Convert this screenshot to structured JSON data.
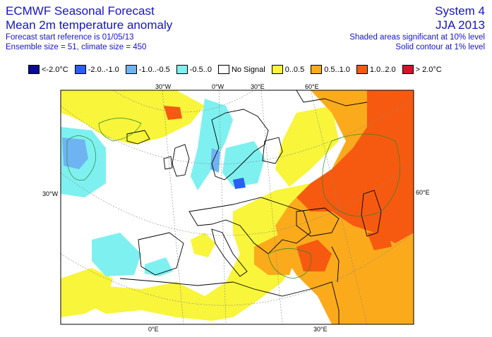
{
  "title": {
    "line1": "ECMWF Seasonal Forecast",
    "line2": "Mean 2m temperature anomaly",
    "line3": "Forecast start reference is 01/05/13",
    "line4": "Ensemble size = 51, climate size = 450"
  },
  "info": {
    "system": "System 4",
    "season": "JJA 2013",
    "shaded_note": "Shaded areas significant at 10% level",
    "contour_note": "Solid contour at 1% level"
  },
  "legend": [
    {
      "label": "<-2.0°C",
      "color": "#0a0a96"
    },
    {
      "label": "-2.0..-1.0",
      "color": "#2a5ff5"
    },
    {
      "label": "-1.0..-0.5",
      "color": "#6fb4f2"
    },
    {
      "label": "-0.5..0",
      "color": "#7ff0f0"
    },
    {
      "label": "No Signal",
      "color": "#ffffff"
    },
    {
      "label": "0..0.5",
      "color": "#f8f53a"
    },
    {
      "label": "0.5..1.0",
      "color": "#fbaa1c"
    },
    {
      "label": "1.0..2.0",
      "color": "#f65a10"
    },
    {
      "label": "> 2.0°C",
      "color": "#d8102a"
    }
  ],
  "graticule_labels": {
    "top_30w": "30°W",
    "top_0": "0°W",
    "top_30e": "30°E",
    "top_60e": "60°E",
    "left_30w": "30°W",
    "right_60e": "60°E",
    "bottom_0": "0°E",
    "bottom_30e": "30°E"
  }
}
